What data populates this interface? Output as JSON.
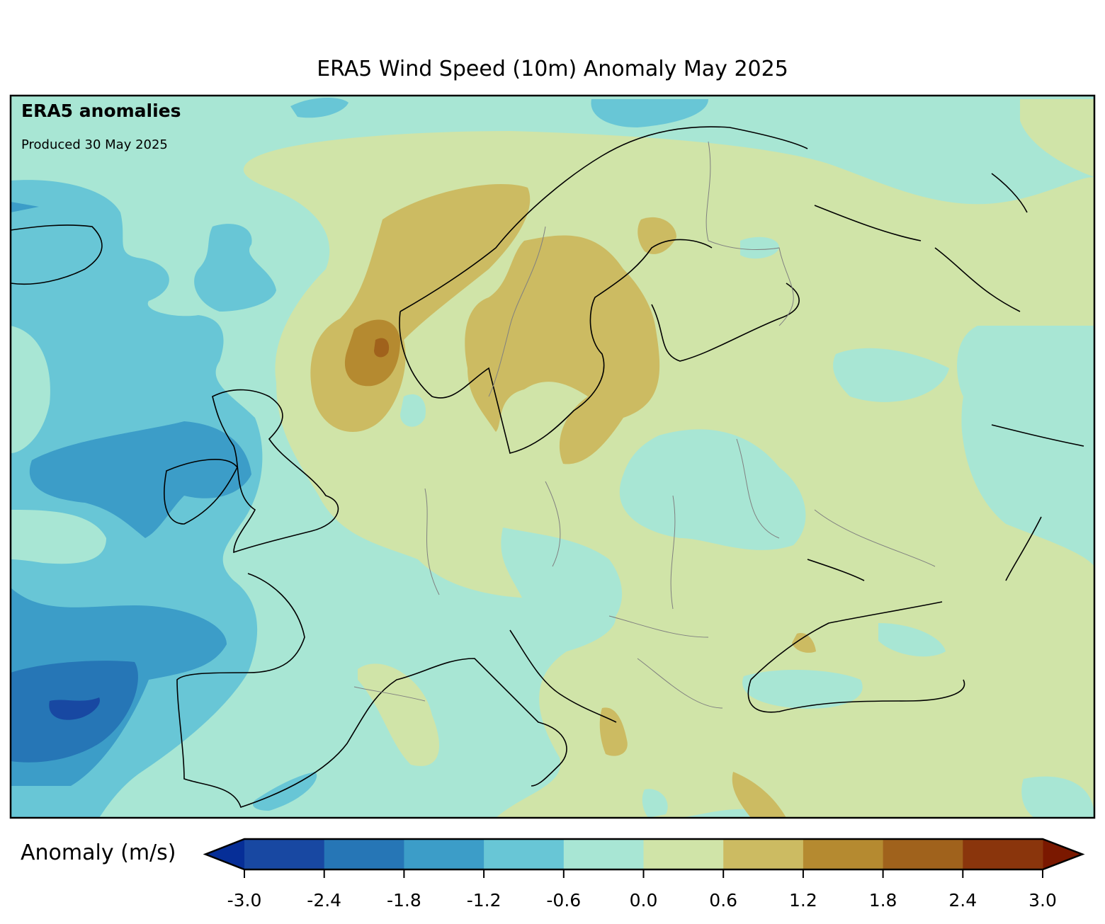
{
  "title": "ERA5 Wind Speed (10m) Anomaly May 2025",
  "annotation": {
    "heading": "ERA5 anomalies",
    "produced": "Produced 30 May 2025"
  },
  "colorbar": {
    "label": "Anomaly (m/s)",
    "ticks": [
      "-3.0",
      "-2.4",
      "-1.8",
      "-1.2",
      "-0.6",
      "0.0",
      "0.6",
      "1.2",
      "1.8",
      "2.4",
      "3.0"
    ],
    "levels": [
      -3.0,
      -2.4,
      -1.8,
      -1.2,
      -0.6,
      0.0,
      0.6,
      1.2,
      1.8,
      2.4,
      3.0
    ],
    "colors": [
      "#1848a2",
      "#2676b6",
      "#3c9dc8",
      "#68c6d6",
      "#a8e6d4",
      "#d0e4a8",
      "#ccbb62",
      "#b58a30",
      "#a0621c",
      "#8a350c"
    ],
    "extend_low_color": "#062e97",
    "extend_high_color": "#7a1800"
  },
  "chart_data": {
    "type": "heatmap",
    "title": "ERA5 Wind Speed (10m) Anomaly May 2025",
    "variable": "10m wind speed anomaly",
    "units": "m/s",
    "range": [
      -3.0,
      3.0
    ],
    "extend": "both"
  }
}
